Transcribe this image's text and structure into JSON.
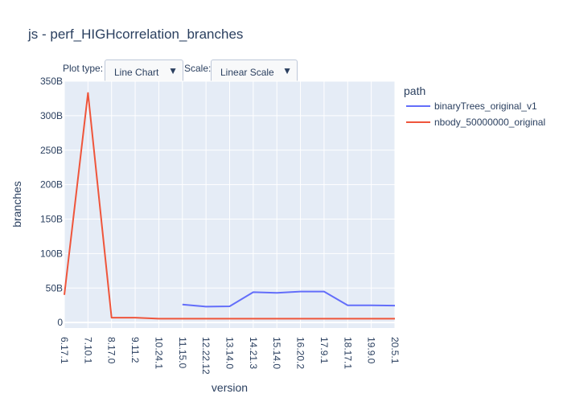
{
  "title": "js - perf_HIGHcorrelation_branches",
  "controls": {
    "plot_type_label": "Plot type:",
    "plot_type_value": "Line Chart",
    "scale_label": "Scale:",
    "scale_value": "Linear Scale",
    "arrow_icon": "triangle-down-icon"
  },
  "colors": {
    "plot_bg": "#e5ecf6",
    "grid": "#ffffff",
    "text": "#2a3f5f",
    "series_1": "#636efa",
    "series_2": "#ef553b"
  },
  "chart_data": {
    "type": "line",
    "xlabel": "version",
    "ylabel": "branches",
    "x": [
      "6.17.1",
      "7.10.1",
      "8.17.0",
      "9.11.2",
      "10.24.1",
      "11.15.0",
      "12.22.12",
      "13.14.0",
      "14.21.3",
      "15.14.0",
      "16.20.2",
      "17.9.1",
      "18.17.1",
      "19.9.0",
      "20.5.1"
    ],
    "ylim": [
      -8,
      350
    ],
    "yticks": [
      0,
      50,
      100,
      150,
      200,
      250,
      300,
      350
    ],
    "ytick_labels": [
      "0",
      "50B",
      "100B",
      "150B",
      "200B",
      "250B",
      "300B",
      "350B"
    ],
    "legend_title": "path",
    "legend_position": "right",
    "grid": true,
    "series": [
      {
        "name": "binaryTrees_original_v1",
        "values": [
          null,
          null,
          null,
          null,
          null,
          26,
          23,
          23.5,
          44,
          43,
          45,
          45,
          25,
          25,
          24.5
        ]
      },
      {
        "name": "nbody_50000000_original",
        "values": [
          40,
          333,
          7,
          7,
          5.5,
          5.5,
          5.5,
          5.5,
          5.5,
          5.5,
          5.5,
          5.5,
          5.5,
          5.5,
          5.5
        ]
      }
    ]
  }
}
